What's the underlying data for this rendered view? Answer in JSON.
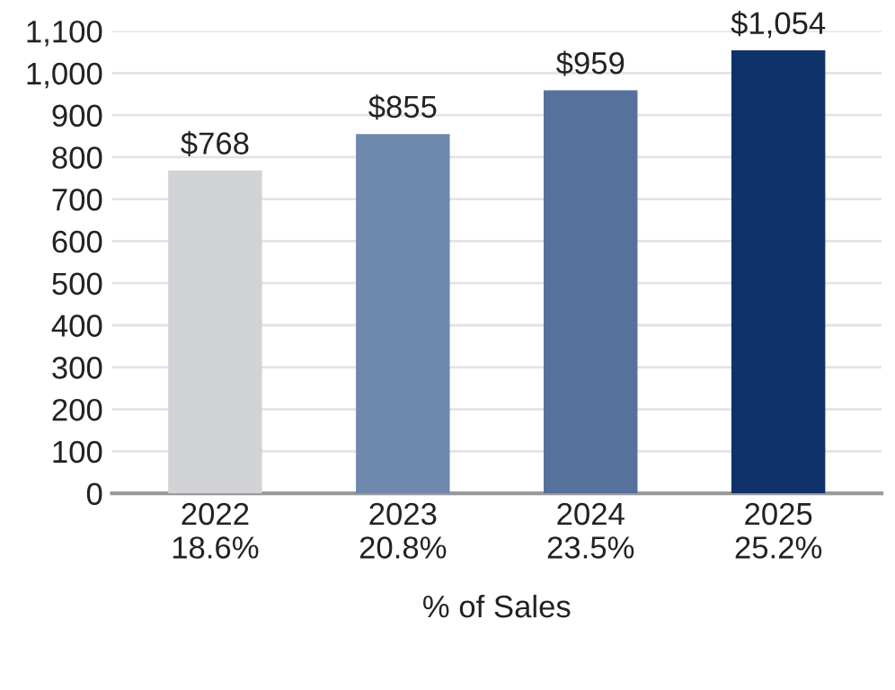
{
  "chart_data": {
    "type": "bar",
    "xlabel": "% of Sales",
    "categories": [
      "2022\n18.6%",
      "2023\n20.8%",
      "2024\n23.5%",
      "2025\n25.2%"
    ],
    "values": [
      768,
      855,
      959,
      1054
    ],
    "colors": [
      "#d1d3d6",
      "#6f88ae",
      "#56719b",
      "#10326b"
    ],
    "value_labels": [
      "$768",
      "$855",
      "$959",
      "$1,054"
    ],
    "ylim": [
      0,
      1100
    ],
    "yticks": [
      0,
      100,
      200,
      300,
      400,
      500,
      600,
      700,
      800,
      900,
      {
        "value": 1000,
        "label": "1,000"
      },
      {
        "value": 1100,
        "label": "1,100"
      }
    ],
    "grid": "y",
    "legend": false
  }
}
